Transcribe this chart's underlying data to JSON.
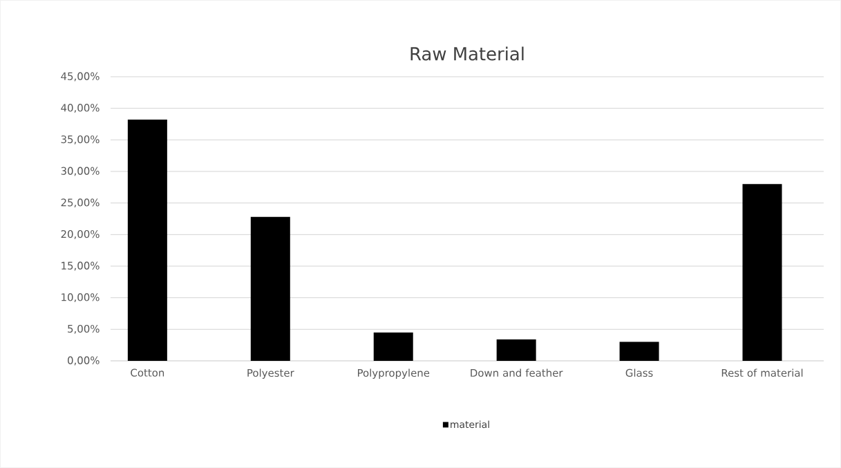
{
  "chart_data": {
    "type": "bar",
    "title": "Raw Material",
    "categories": [
      "Cotton",
      "Polyester",
      "Polypropylene",
      "Down and feather",
      "Glass",
      "Rest of material"
    ],
    "series": [
      {
        "name": "material",
        "color": "#000000",
        "values": [
          38.2,
          22.8,
          4.5,
          3.4,
          3.0,
          28.0
        ]
      }
    ],
    "ylim": [
      0,
      45
    ],
    "yticks": [
      {
        "value": 0,
        "label": "0,00%"
      },
      {
        "value": 5,
        "label": "5,00%"
      },
      {
        "value": 10,
        "label": "10,00%"
      },
      {
        "value": 15,
        "label": "15,00%"
      },
      {
        "value": 20,
        "label": "20,00%"
      },
      {
        "value": 25,
        "label": "25,00%"
      },
      {
        "value": 30,
        "label": "30,00%"
      },
      {
        "value": 35,
        "label": "35,00%"
      },
      {
        "value": 40,
        "label": "40,00%"
      },
      {
        "value": 45,
        "label": "45,00%"
      }
    ],
    "grid": "y",
    "legend": "bottom"
  }
}
